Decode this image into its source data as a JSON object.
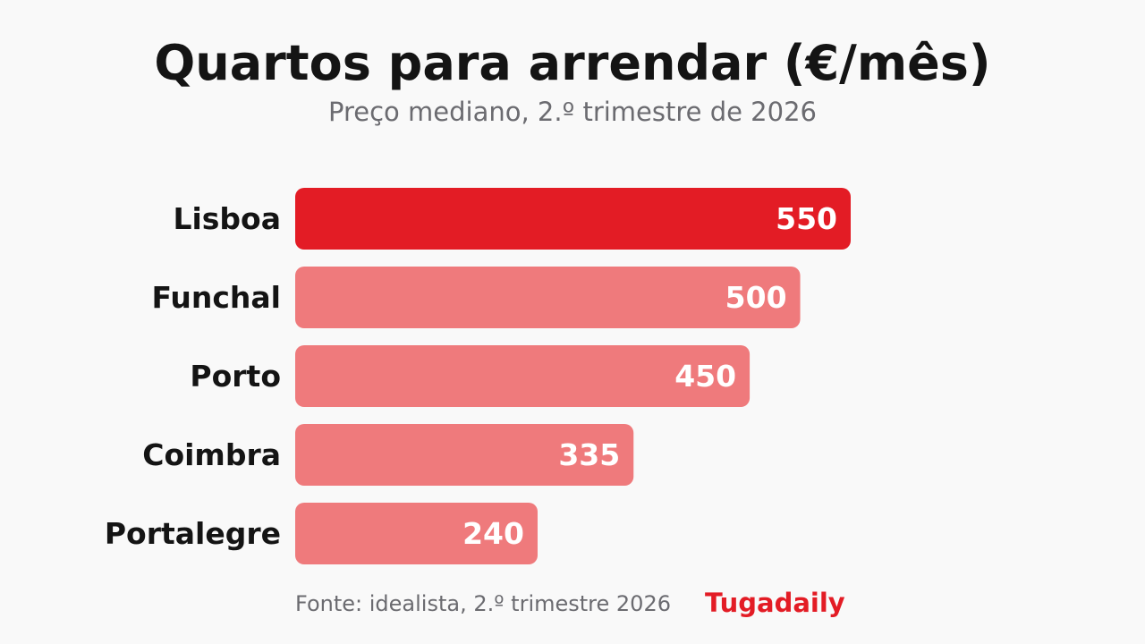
{
  "chart_data": {
    "type": "bar",
    "orientation": "horizontal",
    "title": "Quartos para arrendar (€/mês)",
    "subtitle": "Preço mediano, 2.º trimestre de 2026",
    "categories": [
      "Lisboa",
      "Funchal",
      "Porto",
      "Coimbra",
      "Portalegre"
    ],
    "values": [
      550,
      500,
      450,
      335,
      240
    ],
    "value_labels": [
      "550",
      "500",
      "450",
      "335",
      "240"
    ],
    "highlight_index": 0,
    "highlight_color": "#e31c25",
    "bar_color": "#ef7a7c",
    "xlim": [
      0,
      550
    ],
    "grid": false,
    "legend": "none"
  },
  "footer": {
    "source": "Fonte: idealista, 2.º trimestre 2026",
    "brand": "Tugadaily",
    "brand_color": "#e31c25"
  }
}
